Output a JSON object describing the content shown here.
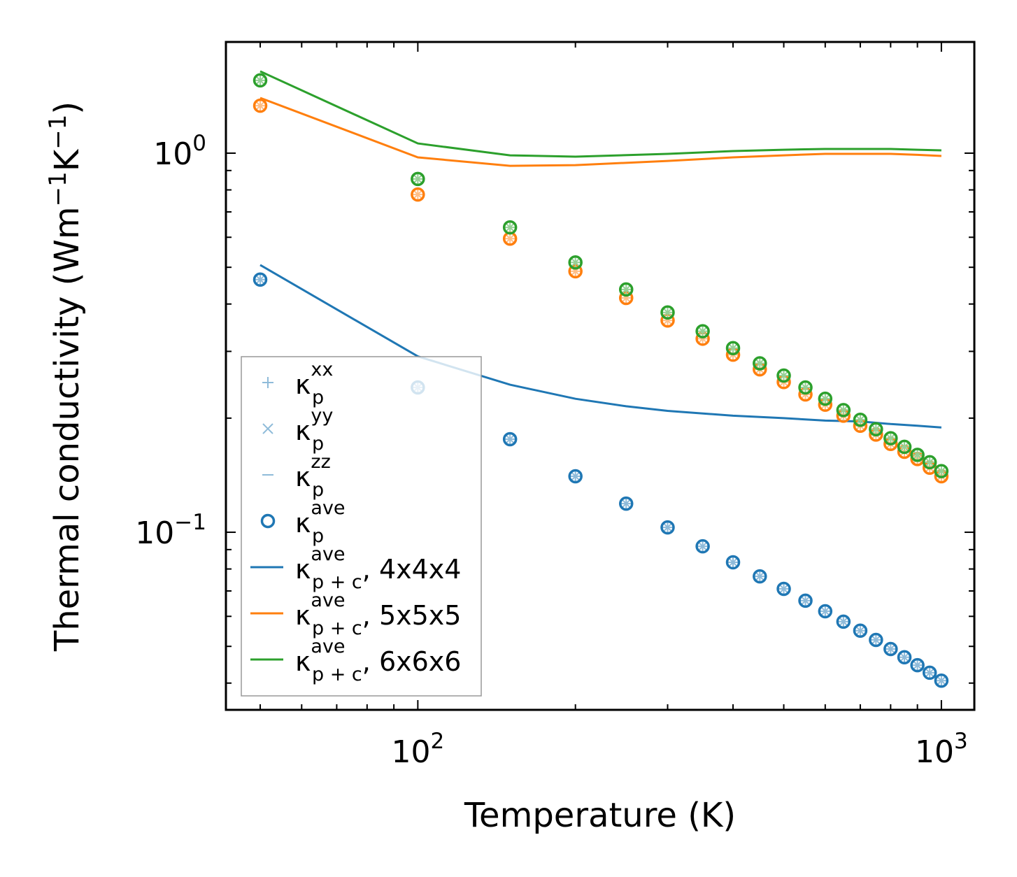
{
  "chart_data": {
    "type": "scatter",
    "xscale": "log",
    "yscale": "log",
    "xlabel": "Temperature (K)",
    "ylabel": {
      "base": "Thermal conductivity (Wm",
      "sup1": "−1",
      "mid": "K",
      "sup2": "−1",
      "end": ")"
    },
    "xlim": [
      43,
      1156
    ],
    "ylim": [
      0.034,
      1.965
    ],
    "xticks": [
      {
        "value": 100,
        "base": "10",
        "exp": "2"
      },
      {
        "value": 1000,
        "base": "10",
        "exp": "3"
      }
    ],
    "yticks": [
      {
        "value": 0.1,
        "base": "10",
        "exp": "−1"
      },
      {
        "value": 1,
        "base": "10",
        "exp": "0"
      }
    ],
    "x": [
      50,
      100,
      150,
      200,
      250,
      300,
      350,
      400,
      450,
      500,
      550,
      600,
      650,
      700,
      750,
      800,
      850,
      900,
      950,
      1000
    ],
    "colors": {
      "blue": "#1f77b4",
      "orange": "#ff7f0e",
      "green": "#2ca02c"
    },
    "series": [
      {
        "name": "kappa_p ave (4x4x4)",
        "color": "#1f77b4",
        "kind": "points",
        "values": [
          0.464,
          0.241,
          0.176,
          0.1405,
          0.119,
          0.103,
          0.0918,
          0.0833,
          0.0765,
          0.0709,
          0.066,
          0.0619,
          0.0581,
          0.055,
          0.052,
          0.0492,
          0.0468,
          0.0446,
          0.0426,
          0.0406
        ]
      },
      {
        "name": "kappa_p ave (5x5x5)",
        "color": "#ff7f0e",
        "kind": "points",
        "values": [
          1.334,
          0.778,
          0.595,
          0.488,
          0.415,
          0.362,
          0.324,
          0.294,
          0.269,
          0.249,
          0.231,
          0.217,
          0.203,
          0.191,
          0.181,
          0.171,
          0.163,
          0.156,
          0.148,
          0.1405
        ]
      },
      {
        "name": "kappa_p ave (6x6x6)",
        "color": "#2ca02c",
        "kind": "points",
        "values": [
          1.556,
          0.855,
          0.637,
          0.515,
          0.437,
          0.38,
          0.339,
          0.306,
          0.279,
          0.259,
          0.241,
          0.225,
          0.21,
          0.198,
          0.187,
          0.177,
          0.168,
          0.16,
          0.153,
          0.145
        ]
      },
      {
        "name": "kappa_p+c ave, 4x4x4",
        "color": "#1f77b4",
        "kind": "line",
        "x": [
          50,
          100,
          150,
          200,
          250,
          300,
          400,
          500,
          600,
          700,
          800,
          900,
          1000
        ],
        "values": [
          0.507,
          0.291,
          0.245,
          0.225,
          0.215,
          0.209,
          0.203,
          0.2,
          0.197,
          0.196,
          0.193,
          0.191,
          0.189
        ]
      },
      {
        "name": "kappa_p+c ave, 5x5x5",
        "color": "#ff7f0e",
        "kind": "line",
        "x": [
          50,
          100,
          150,
          200,
          300,
          400,
          500,
          600,
          700,
          800,
          900,
          1000
        ],
        "values": [
          1.399,
          0.975,
          0.926,
          0.93,
          0.954,
          0.975,
          0.987,
          0.996,
          0.996,
          0.996,
          0.99,
          0.983
        ]
      },
      {
        "name": "kappa_p+c ave, 6x6x6",
        "color": "#2ca02c",
        "kind": "line",
        "x": [
          50,
          100,
          150,
          200,
          300,
          400,
          500,
          600,
          700,
          800,
          900,
          1000
        ],
        "values": [
          1.644,
          1.061,
          0.987,
          0.979,
          0.996,
          1.013,
          1.021,
          1.026,
          1.026,
          1.026,
          1.021,
          1.017
        ]
      }
    ],
    "legend": {
      "placement": "center-left",
      "entries": [
        {
          "marker": "plus",
          "color": "#8fbbd9",
          "base": "κ",
          "sub": "p",
          "sup": "xx",
          "suffix": ""
        },
        {
          "marker": "x",
          "color": "#8fbbd9",
          "base": "κ",
          "sub": "p",
          "sup": "yy",
          "suffix": ""
        },
        {
          "marker": "hline",
          "color": "#8fbbd9",
          "base": "κ",
          "sub": "p",
          "sup": "zz",
          "suffix": ""
        },
        {
          "marker": "circle",
          "color": "#1f77b4",
          "base": "κ",
          "sub": "p",
          "sup": "ave",
          "suffix": ""
        },
        {
          "marker": "line",
          "color": "#1f77b4",
          "base": "κ",
          "sub": "p + c",
          "sup": "ave",
          "suffix": ", 4x4x4"
        },
        {
          "marker": "line",
          "color": "#ff7f0e",
          "base": "κ",
          "sub": "p + c",
          "sup": "ave",
          "suffix": ", 5x5x5"
        },
        {
          "marker": "line",
          "color": "#2ca02c",
          "base": "κ",
          "sub": "p + c",
          "sup": "ave",
          "suffix": ", 6x6x6"
        }
      ]
    }
  }
}
